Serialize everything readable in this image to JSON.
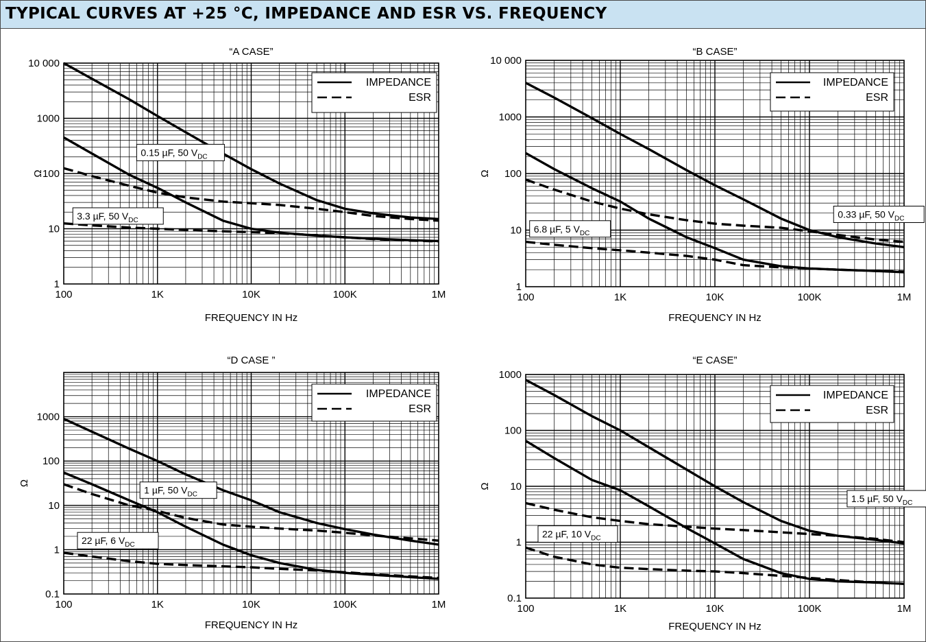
{
  "page": {
    "title": "TYPICAL CURVES AT +25 °C, IMPEDANCE AND ESR VS. FREQUENCY",
    "header_color": "#c9e2f2"
  },
  "chart_data": [
    {
      "type": "line",
      "title": "“A CASE”",
      "xlabel": "FREQUENCY IN Hz",
      "ylabel": "Ω",
      "xscale": "log",
      "yscale": "log",
      "xlim": [
        100,
        1000000
      ],
      "ylim": [
        1,
        10000
      ],
      "x_ticks": [
        {
          "v": 100,
          "label": "100"
        },
        {
          "v": 1000,
          "label": "1K"
        },
        {
          "v": 10000,
          "label": "10K"
        },
        {
          "v": 100000,
          "label": "100K"
        },
        {
          "v": 1000000,
          "label": "1M"
        }
      ],
      "y_ticks": [
        {
          "v": 1,
          "label": "1"
        },
        {
          "v": 10,
          "label": "10"
        },
        {
          "v": 100,
          "label": "100"
        },
        {
          "v": 1000,
          "label": "1000"
        },
        {
          "v": 10000,
          "label": "10 000"
        }
      ],
      "grid": true,
      "legend": {
        "position": "top-right",
        "entries": [
          {
            "label": "IMPEDANCE",
            "style": "solid"
          },
          {
            "label": "ESR",
            "style": "dashed"
          }
        ]
      },
      "series": [
        {
          "style": "solid",
          "x": [
            100,
            200,
            500,
            1000,
            2000,
            5000,
            10000,
            20000,
            50000,
            100000,
            200000,
            500000,
            1000000
          ],
          "y": [
            10000,
            5200,
            2200,
            1100,
            560,
            230,
            120,
            66,
            33,
            23,
            19,
            16,
            15
          ]
        },
        {
          "style": "dashed",
          "x": [
            100,
            200,
            500,
            1000,
            2000,
            5000,
            10000,
            20000,
            50000,
            100000,
            200000,
            500000,
            1000000
          ],
          "y": [
            125,
            90,
            60,
            45,
            37,
            31,
            29,
            27,
            23,
            20,
            17,
            15,
            14
          ]
        },
        {
          "style": "solid",
          "x": [
            100,
            200,
            500,
            1000,
            2000,
            5000,
            10000,
            20000,
            50000,
            100000,
            200000,
            500000,
            1000000
          ],
          "y": [
            450,
            230,
            95,
            55,
            30,
            14,
            10,
            8.5,
            7.5,
            7,
            6.6,
            6.2,
            6
          ]
        },
        {
          "style": "dashed",
          "x": [
            100,
            200,
            500,
            1000,
            2000,
            5000,
            10000,
            20000,
            50000,
            100000,
            200000,
            500000,
            1000000
          ],
          "y": [
            12.5,
            11.5,
            10.5,
            10,
            9.5,
            9,
            8.7,
            8.3,
            7.6,
            7,
            6.5,
            6.1,
            5.9
          ]
        }
      ],
      "annotations": [
        {
          "text": "0.15 µF, 50 V",
          "sub": "DC",
          "x": 600,
          "y": 240
        },
        {
          "text": "3.3  µF, 50 V",
          "sub": "DC",
          "x": 125,
          "y": 17
        }
      ]
    },
    {
      "type": "line",
      "title": "“B  CASE”",
      "xlabel": "FREQUENCY IN Hz",
      "ylabel": "Ω",
      "xscale": "log",
      "yscale": "log",
      "xlim": [
        100,
        1000000
      ],
      "ylim": [
        1,
        10000
      ],
      "x_ticks": [
        {
          "v": 100,
          "label": "100"
        },
        {
          "v": 1000,
          "label": "1K"
        },
        {
          "v": 10000,
          "label": "10K"
        },
        {
          "v": 100000,
          "label": "100K"
        },
        {
          "v": 1000000,
          "label": "1M"
        }
      ],
      "y_ticks": [
        {
          "v": 1,
          "label": "1"
        },
        {
          "v": 10,
          "label": "10"
        },
        {
          "v": 100,
          "label": "100"
        },
        {
          "v": 1000,
          "label": "1000"
        },
        {
          "v": 10000,
          "label": "10 000"
        }
      ],
      "grid": true,
      "legend": {
        "position": "top-right",
        "entries": [
          {
            "label": "IMPEDANCE",
            "style": "solid"
          },
          {
            "label": "ESR",
            "style": "dashed"
          }
        ]
      },
      "series": [
        {
          "style": "solid",
          "x": [
            100,
            200,
            500,
            1000,
            2000,
            5000,
            10000,
            20000,
            50000,
            100000,
            200000,
            500000,
            1000000
          ],
          "y": [
            4000,
            2200,
            950,
            500,
            270,
            115,
            62,
            35,
            16,
            10,
            7.5,
            5.8,
            5
          ]
        },
        {
          "style": "dashed",
          "x": [
            100,
            200,
            500,
            1000,
            2000,
            5000,
            10000,
            20000,
            50000,
            100000,
            200000,
            500000,
            1000000
          ],
          "y": [
            78,
            52,
            32,
            24,
            19,
            15,
            13,
            12,
            11,
            9.5,
            8.2,
            6.8,
            6.2
          ]
        },
        {
          "style": "solid",
          "x": [
            100,
            200,
            500,
            1000,
            2000,
            5000,
            10000,
            20000,
            50000,
            100000,
            200000,
            500000,
            1000000
          ],
          "y": [
            230,
            120,
            55,
            32,
            16,
            7.5,
            4.8,
            3,
            2.3,
            2.1,
            2,
            1.9,
            1.8
          ]
        },
        {
          "style": "dashed",
          "x": [
            100,
            200,
            500,
            1000,
            2000,
            5000,
            10000,
            20000,
            50000,
            100000,
            200000,
            500000,
            1000000
          ],
          "y": [
            6.2,
            5.5,
            4.8,
            4.4,
            4,
            3.5,
            3,
            2.4,
            2.2,
            2.1,
            2,
            1.9,
            1.85
          ]
        }
      ],
      "annotations": [
        {
          "text": "0.33 µF, 50 V",
          "sub": "DC",
          "x": 180000,
          "y": 19
        },
        {
          "text": "6.8 µF,  5 V",
          "sub": "DC",
          "x": 110,
          "y": 10.5
        }
      ]
    },
    {
      "type": "line",
      "title": "“D CASE ”",
      "xlabel": "FREQUENCY IN Hz",
      "ylabel": "Ω",
      "xscale": "log",
      "yscale": "log",
      "xlim": [
        100,
        1000000
      ],
      "ylim": [
        0.1,
        10000
      ],
      "x_ticks": [
        {
          "v": 100,
          "label": "100"
        },
        {
          "v": 1000,
          "label": "1K"
        },
        {
          "v": 10000,
          "label": "10K"
        },
        {
          "v": 100000,
          "label": "100K"
        },
        {
          "v": 1000000,
          "label": "1M"
        }
      ],
      "y_ticks": [
        {
          "v": 0.1,
          "label": "0.1"
        },
        {
          "v": 1,
          "label": "1"
        },
        {
          "v": 10,
          "label": "10"
        },
        {
          "v": 100,
          "label": "100"
        },
        {
          "v": 1000,
          "label": "1000"
        }
      ],
      "grid": true,
      "legend": {
        "position": "top-right",
        "entries": [
          {
            "label": "IMPEDANCE",
            "style": "solid"
          },
          {
            "label": "ESR",
            "style": "dashed"
          }
        ]
      },
      "series": [
        {
          "style": "solid",
          "x": [
            100,
            200,
            500,
            1000,
            2000,
            5000,
            10000,
            20000,
            50000,
            100000,
            200000,
            500000,
            1000000
          ],
          "y": [
            900,
            460,
            190,
            100,
            50,
            22,
            13,
            7,
            4,
            2.9,
            2.2,
            1.6,
            1.3
          ]
        },
        {
          "style": "dashed",
          "x": [
            100,
            200,
            500,
            1000,
            2000,
            5000,
            10000,
            20000,
            50000,
            100000,
            200000,
            500000,
            1000000
          ],
          "y": [
            30,
            18,
            10,
            7.5,
            5.2,
            3.7,
            3.3,
            3,
            2.7,
            2.4,
            2.1,
            1.8,
            1.6
          ]
        },
        {
          "style": "solid",
          "x": [
            100,
            200,
            500,
            1000,
            2000,
            5000,
            10000,
            20000,
            50000,
            100000,
            200000,
            500000,
            1000000
          ],
          "y": [
            55,
            30,
            13,
            7,
            3.3,
            1.3,
            0.75,
            0.5,
            0.35,
            0.3,
            0.27,
            0.24,
            0.22
          ]
        },
        {
          "style": "dashed",
          "x": [
            100,
            200,
            500,
            1000,
            2000,
            5000,
            10000,
            20000,
            50000,
            100000,
            200000,
            500000,
            1000000
          ],
          "y": [
            0.85,
            0.7,
            0.55,
            0.48,
            0.45,
            0.42,
            0.4,
            0.37,
            0.34,
            0.31,
            0.28,
            0.25,
            0.23
          ]
        }
      ],
      "annotations": [
        {
          "text": "1 µF, 50 V",
          "sub": "DC",
          "x": 650,
          "y": 22
        },
        {
          "text": "22 µF, 6 V",
          "sub": "DC",
          "x": 140,
          "y": 1.6
        }
      ]
    },
    {
      "type": "line",
      "title": "“E CASE”",
      "xlabel": "FREQUENCY IN Hz",
      "ylabel": "Ω",
      "xscale": "log",
      "yscale": "log",
      "xlim": [
        100,
        1000000
      ],
      "ylim": [
        0.1,
        1000
      ],
      "x_ticks": [
        {
          "v": 100,
          "label": "100"
        },
        {
          "v": 1000,
          "label": "1K"
        },
        {
          "v": 10000,
          "label": "10K"
        },
        {
          "v": 100000,
          "label": "100K"
        },
        {
          "v": 1000000,
          "label": "1M"
        }
      ],
      "y_ticks": [
        {
          "v": 0.1,
          "label": "0.1"
        },
        {
          "v": 1,
          "label": "1"
        },
        {
          "v": 10,
          "label": "10"
        },
        {
          "v": 100,
          "label": "100"
        },
        {
          "v": 1000,
          "label": "1000"
        }
      ],
      "grid": true,
      "legend": {
        "position": "top-right",
        "entries": [
          {
            "label": "IMPEDANCE",
            "style": "solid"
          },
          {
            "label": "ESR",
            "style": "dashed"
          }
        ]
      },
      "series": [
        {
          "style": "solid",
          "x": [
            100,
            200,
            500,
            1000,
            2000,
            5000,
            10000,
            20000,
            50000,
            100000,
            200000,
            500000,
            1000000
          ],
          "y": [
            800,
            430,
            180,
            100,
            50,
            20,
            10,
            5.2,
            2.4,
            1.6,
            1.3,
            1.1,
            0.95
          ]
        },
        {
          "style": "dashed",
          "x": [
            100,
            200,
            500,
            1000,
            2000,
            5000,
            10000,
            20000,
            50000,
            100000,
            200000,
            500000,
            1000000
          ],
          "y": [
            5,
            3.8,
            2.8,
            2.4,
            2.1,
            1.9,
            1.75,
            1.65,
            1.5,
            1.4,
            1.3,
            1.15,
            1
          ]
        },
        {
          "style": "solid",
          "x": [
            100,
            200,
            500,
            1000,
            2000,
            5000,
            10000,
            20000,
            50000,
            100000,
            200000,
            500000,
            1000000
          ],
          "y": [
            65,
            32,
            13,
            8.5,
            4.4,
            1.8,
            0.95,
            0.5,
            0.28,
            0.22,
            0.2,
            0.19,
            0.18
          ]
        },
        {
          "style": "dashed",
          "x": [
            100,
            200,
            500,
            1000,
            2000,
            5000,
            10000,
            20000,
            50000,
            100000,
            200000,
            500000,
            1000000
          ],
          "y": [
            0.8,
            0.55,
            0.4,
            0.35,
            0.33,
            0.31,
            0.3,
            0.28,
            0.25,
            0.23,
            0.21,
            0.19,
            0.18
          ]
        }
      ],
      "annotations": [
        {
          "text": "1.5 µF, 50 V",
          "sub": "DC",
          "x": 250000,
          "y": 6
        },
        {
          "text": "22 µF, 10 V",
          "sub": "DC",
          "x": 135,
          "y": 1.4
        }
      ]
    }
  ]
}
